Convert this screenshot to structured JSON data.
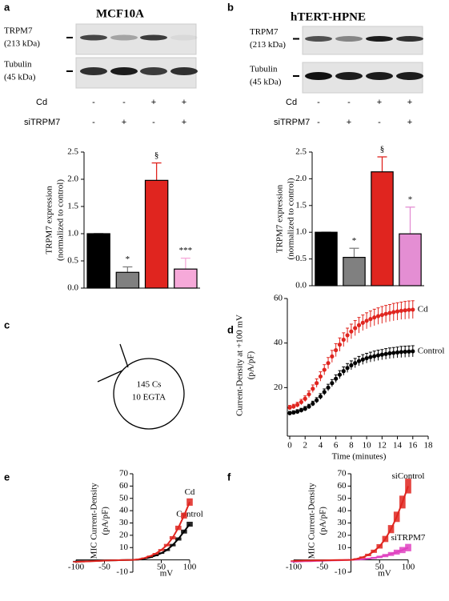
{
  "panel_labels": [
    "a",
    "b",
    "c",
    "d",
    "e",
    "f"
  ],
  "blots": [
    {
      "title": "MCF10A",
      "bands": [
        {
          "name": "TRPM7",
          "size": "(213 kDa)"
        },
        {
          "name": "Tubulin",
          "size": "(45 kDa)"
        }
      ],
      "conditions": [
        {
          "name": "Cd",
          "marks": [
            "-",
            "-",
            "+",
            "+"
          ]
        },
        {
          "name": "siTRPM7",
          "marks": [
            "-",
            "+",
            "-",
            "+"
          ]
        }
      ]
    },
    {
      "title": "hTERT-HPNE",
      "bands": [
        {
          "name": "TRPM7",
          "size": "(213 kDa)"
        },
        {
          "name": "Tubulin",
          "size": "(45 kDa)"
        }
      ],
      "conditions": [
        {
          "name": "Cd",
          "marks": [
            "-",
            "-",
            "+",
            "+"
          ]
        },
        {
          "name": "siTRPM7",
          "marks": [
            "-",
            "+",
            "-",
            "+"
          ]
        }
      ]
    }
  ],
  "diagram": {
    "lines": [
      "145 Cs",
      "10 EGTA"
    ]
  },
  "chart_data": [
    {
      "type": "bar",
      "categories": [
        null,
        null,
        null,
        null
      ],
      "values": [
        1.0,
        0.29,
        1.98,
        0.35
      ],
      "errors": [
        0,
        0.1,
        0.32,
        0.2
      ],
      "colors": [
        "#000000",
        "#808080",
        "#e0251f",
        "#f6a9d9"
      ],
      "annotations": [
        null,
        "*",
        "§",
        "***"
      ],
      "ylabel": [
        "TRPM7 expression",
        "(normalized to control)"
      ],
      "ylim": [
        0,
        2.5
      ],
      "yticks": [
        {
          "value": 0,
          "label": "0.0"
        },
        0.5,
        {
          "value": 1,
          "label": "1.0"
        },
        1.5,
        {
          "value": 2,
          "label": "2.0"
        },
        2.5
      ]
    },
    {
      "type": "bar",
      "categories": [
        null,
        null,
        null,
        null
      ],
      "values": [
        1.0,
        0.53,
        2.13,
        0.97
      ],
      "errors": [
        0,
        0.17,
        0.28,
        0.5
      ],
      "colors": [
        "#000000",
        "#808080",
        "#e0251f",
        "#e48ed3"
      ],
      "annotations": [
        null,
        "*",
        "§",
        "*"
      ],
      "ylabel": [
        "TRPM7 expression",
        "(normalized to control)"
      ],
      "ylim": [
        0,
        2.5
      ],
      "yticks": [
        {
          "value": 0,
          "label": "0.0"
        },
        0.5,
        {
          "value": 1,
          "label": "1.0"
        },
        1.5,
        {
          "value": 2,
          "label": "2.0"
        },
        2.5
      ]
    },
    {
      "type": "scatter",
      "x": [
        0,
        0.5,
        1,
        1.5,
        2,
        2.5,
        3,
        3.5,
        4,
        4.5,
        5,
        5.5,
        6,
        6.5,
        7,
        7.5,
        8,
        8.5,
        9,
        9.5,
        10,
        10.5,
        11,
        11.5,
        12,
        12.5,
        13,
        13.5,
        14,
        14.5,
        15,
        15.5,
        16
      ],
      "series": [
        {
          "name": "Control",
          "color": "#000000",
          "values": [
            8.5,
            8.8,
            9.2,
            9.8,
            10.5,
            11.5,
            12.8,
            14.3,
            16,
            18,
            20,
            22,
            24,
            25.8,
            27.4,
            28.8,
            30,
            31,
            31.9,
            32.6,
            33.2,
            33.7,
            34.1,
            34.5,
            34.8,
            35.1,
            35.4,
            35.6,
            35.8,
            36,
            36.1,
            36.2,
            36.3
          ],
          "errors": [
            0.8,
            0.8,
            0.9,
            0.9,
            1,
            1,
            1.1,
            1.2,
            1.3,
            1.4,
            1.5,
            1.6,
            1.7,
            1.8,
            1.9,
            2,
            2,
            2.1,
            2.1,
            2.2,
            2.2,
            2.2,
            2.3,
            2.3,
            2.3,
            2.4,
            2.4,
            2.4,
            2.4,
            2.5,
            2.5,
            2.5,
            2.5
          ]
        },
        {
          "name": "Cd",
          "color": "#e0251f",
          "values": [
            11,
            11.5,
            12.3,
            13.5,
            15,
            17,
            19.5,
            22,
            25,
            28,
            31,
            34,
            36.8,
            39.3,
            41.5,
            43.5,
            45.2,
            46.7,
            48,
            49.1,
            50,
            50.8,
            51.5,
            52.1,
            52.6,
            53.1,
            53.5,
            53.9,
            54.2,
            54.5,
            54.7,
            54.9,
            55
          ],
          "errors": [
            1,
            1,
            1.1,
            1.2,
            1.3,
            1.5,
            1.7,
            1.9,
            2.1,
            2.3,
            2.5,
            2.7,
            2.9,
            3,
            3.1,
            3.2,
            3.3,
            3.4,
            3.5,
            3.5,
            3.6,
            3.6,
            3.7,
            3.7,
            3.8,
            3.8,
            3.8,
            3.9,
            3.9,
            3.9,
            4,
            4,
            4
          ]
        }
      ],
      "xlabel": "Time (minutes)",
      "ylabel": [
        "Current-Density at +100 mV",
        "(pA/pF)"
      ],
      "xlim": [
        0,
        18
      ],
      "xticks": [
        0,
        2,
        4,
        6,
        8,
        10,
        12,
        14,
        16,
        18
      ],
      "ylim": [
        0,
        60
      ],
      "yticks": [
        20,
        40,
        60
      ]
    },
    {
      "type": "line",
      "x": [
        -100,
        -90,
        -80,
        -70,
        -60,
        -50,
        -40,
        -30,
        -20,
        -10,
        0,
        10,
        20,
        30,
        40,
        50,
        60,
        70,
        80,
        90,
        100
      ],
      "series": [
        {
          "name": "Control",
          "color": "#000000",
          "values": [
            -1.2,
            -1.1,
            -1,
            -0.9,
            -0.7,
            -0.6,
            -0.4,
            -0.3,
            -0.2,
            -0.1,
            0,
            0.3,
            1,
            2,
            3.5,
            5.5,
            8,
            12,
            17,
            23,
            29
          ],
          "errors": [
            0.4,
            0.4,
            0.4,
            0.3,
            0.3,
            0.3,
            0.3,
            0.2,
            0.2,
            0.2,
            0.2,
            0.2,
            0.3,
            0.4,
            0.5,
            0.6,
            0.8,
            1,
            1.3,
            1.6,
            2
          ]
        },
        {
          "name": "Cd",
          "color": "#e0251f",
          "values": [
            -1.6,
            -1.4,
            -1.2,
            -1,
            -0.8,
            -0.6,
            -0.4,
            -0.3,
            -0.2,
            -0.1,
            0,
            0.5,
            1.5,
            3,
            5,
            8,
            12,
            18,
            26,
            36,
            47
          ],
          "errors": [
            0.6,
            0.6,
            0.5,
            0.5,
            0.5,
            0.4,
            0.4,
            0.3,
            0.3,
            0.3,
            0.3,
            0.3,
            0.4,
            0.5,
            0.6,
            0.8,
            1,
            1.3,
            1.8,
            2.4,
            3
          ]
        }
      ],
      "xlabel": "mV",
      "ylabel": [
        "MIC Current-Density",
        "(pA/pF)"
      ],
      "xlim": [
        -100,
        100
      ],
      "xticks": [
        -100,
        -50,
        50,
        100
      ],
      "ylim": [
        -10,
        70
      ],
      "yticks": [
        -10,
        10,
        20,
        30,
        40,
        50,
        60,
        70
      ]
    },
    {
      "type": "line",
      "x": [
        -100,
        -90,
        -80,
        -70,
        -60,
        -50,
        -40,
        -30,
        -20,
        -10,
        0,
        10,
        20,
        30,
        40,
        50,
        60,
        70,
        80,
        90,
        100
      ],
      "series": [
        {
          "name": "siTRPM7",
          "color": "#e040c0",
          "values": [
            -1.5,
            -1.3,
            -1.1,
            -1,
            -0.8,
            -0.7,
            -0.5,
            -0.4,
            -0.3,
            -0.1,
            0,
            0.2,
            0.5,
            1,
            1.6,
            2.4,
            3.5,
            4.8,
            6.3,
            8,
            10
          ],
          "errors": [
            0.5,
            0.5,
            0.5,
            0.5,
            0.5,
            0.5,
            0.5,
            0.5,
            0.5,
            0.5,
            0.5,
            0.5,
            0.5,
            0.6,
            0.8,
            1,
            1.3,
            1.6,
            2,
            2.5,
            3
          ]
        },
        {
          "name": "siControl",
          "color": "#e0251f",
          "values": [
            -0.8,
            -0.7,
            -0.6,
            -0.5,
            -0.4,
            -0.4,
            -0.3,
            -0.2,
            -0.1,
            -0.1,
            0,
            0.8,
            2,
            4,
            7,
            11,
            17,
            25,
            35,
            47,
            60
          ],
          "errors": [
            0.5,
            0.5,
            0.5,
            0.5,
            0.5,
            0.5,
            0.5,
            0.5,
            0.5,
            0.5,
            0.5,
            0.5,
            0.8,
            1,
            1.3,
            1.8,
            2.5,
            3.3,
            4.2,
            5.2,
            6
          ]
        }
      ],
      "xlabel": "mV",
      "ylabel": [
        "MIC Current-Density",
        "(pA/pF)"
      ],
      "xlim": [
        -100,
        100
      ],
      "xticks": [
        -100,
        -50,
        50,
        100
      ],
      "ylim": [
        -10,
        70
      ],
      "yticks": [
        -10,
        10,
        20,
        30,
        40,
        50,
        60,
        70
      ]
    }
  ]
}
